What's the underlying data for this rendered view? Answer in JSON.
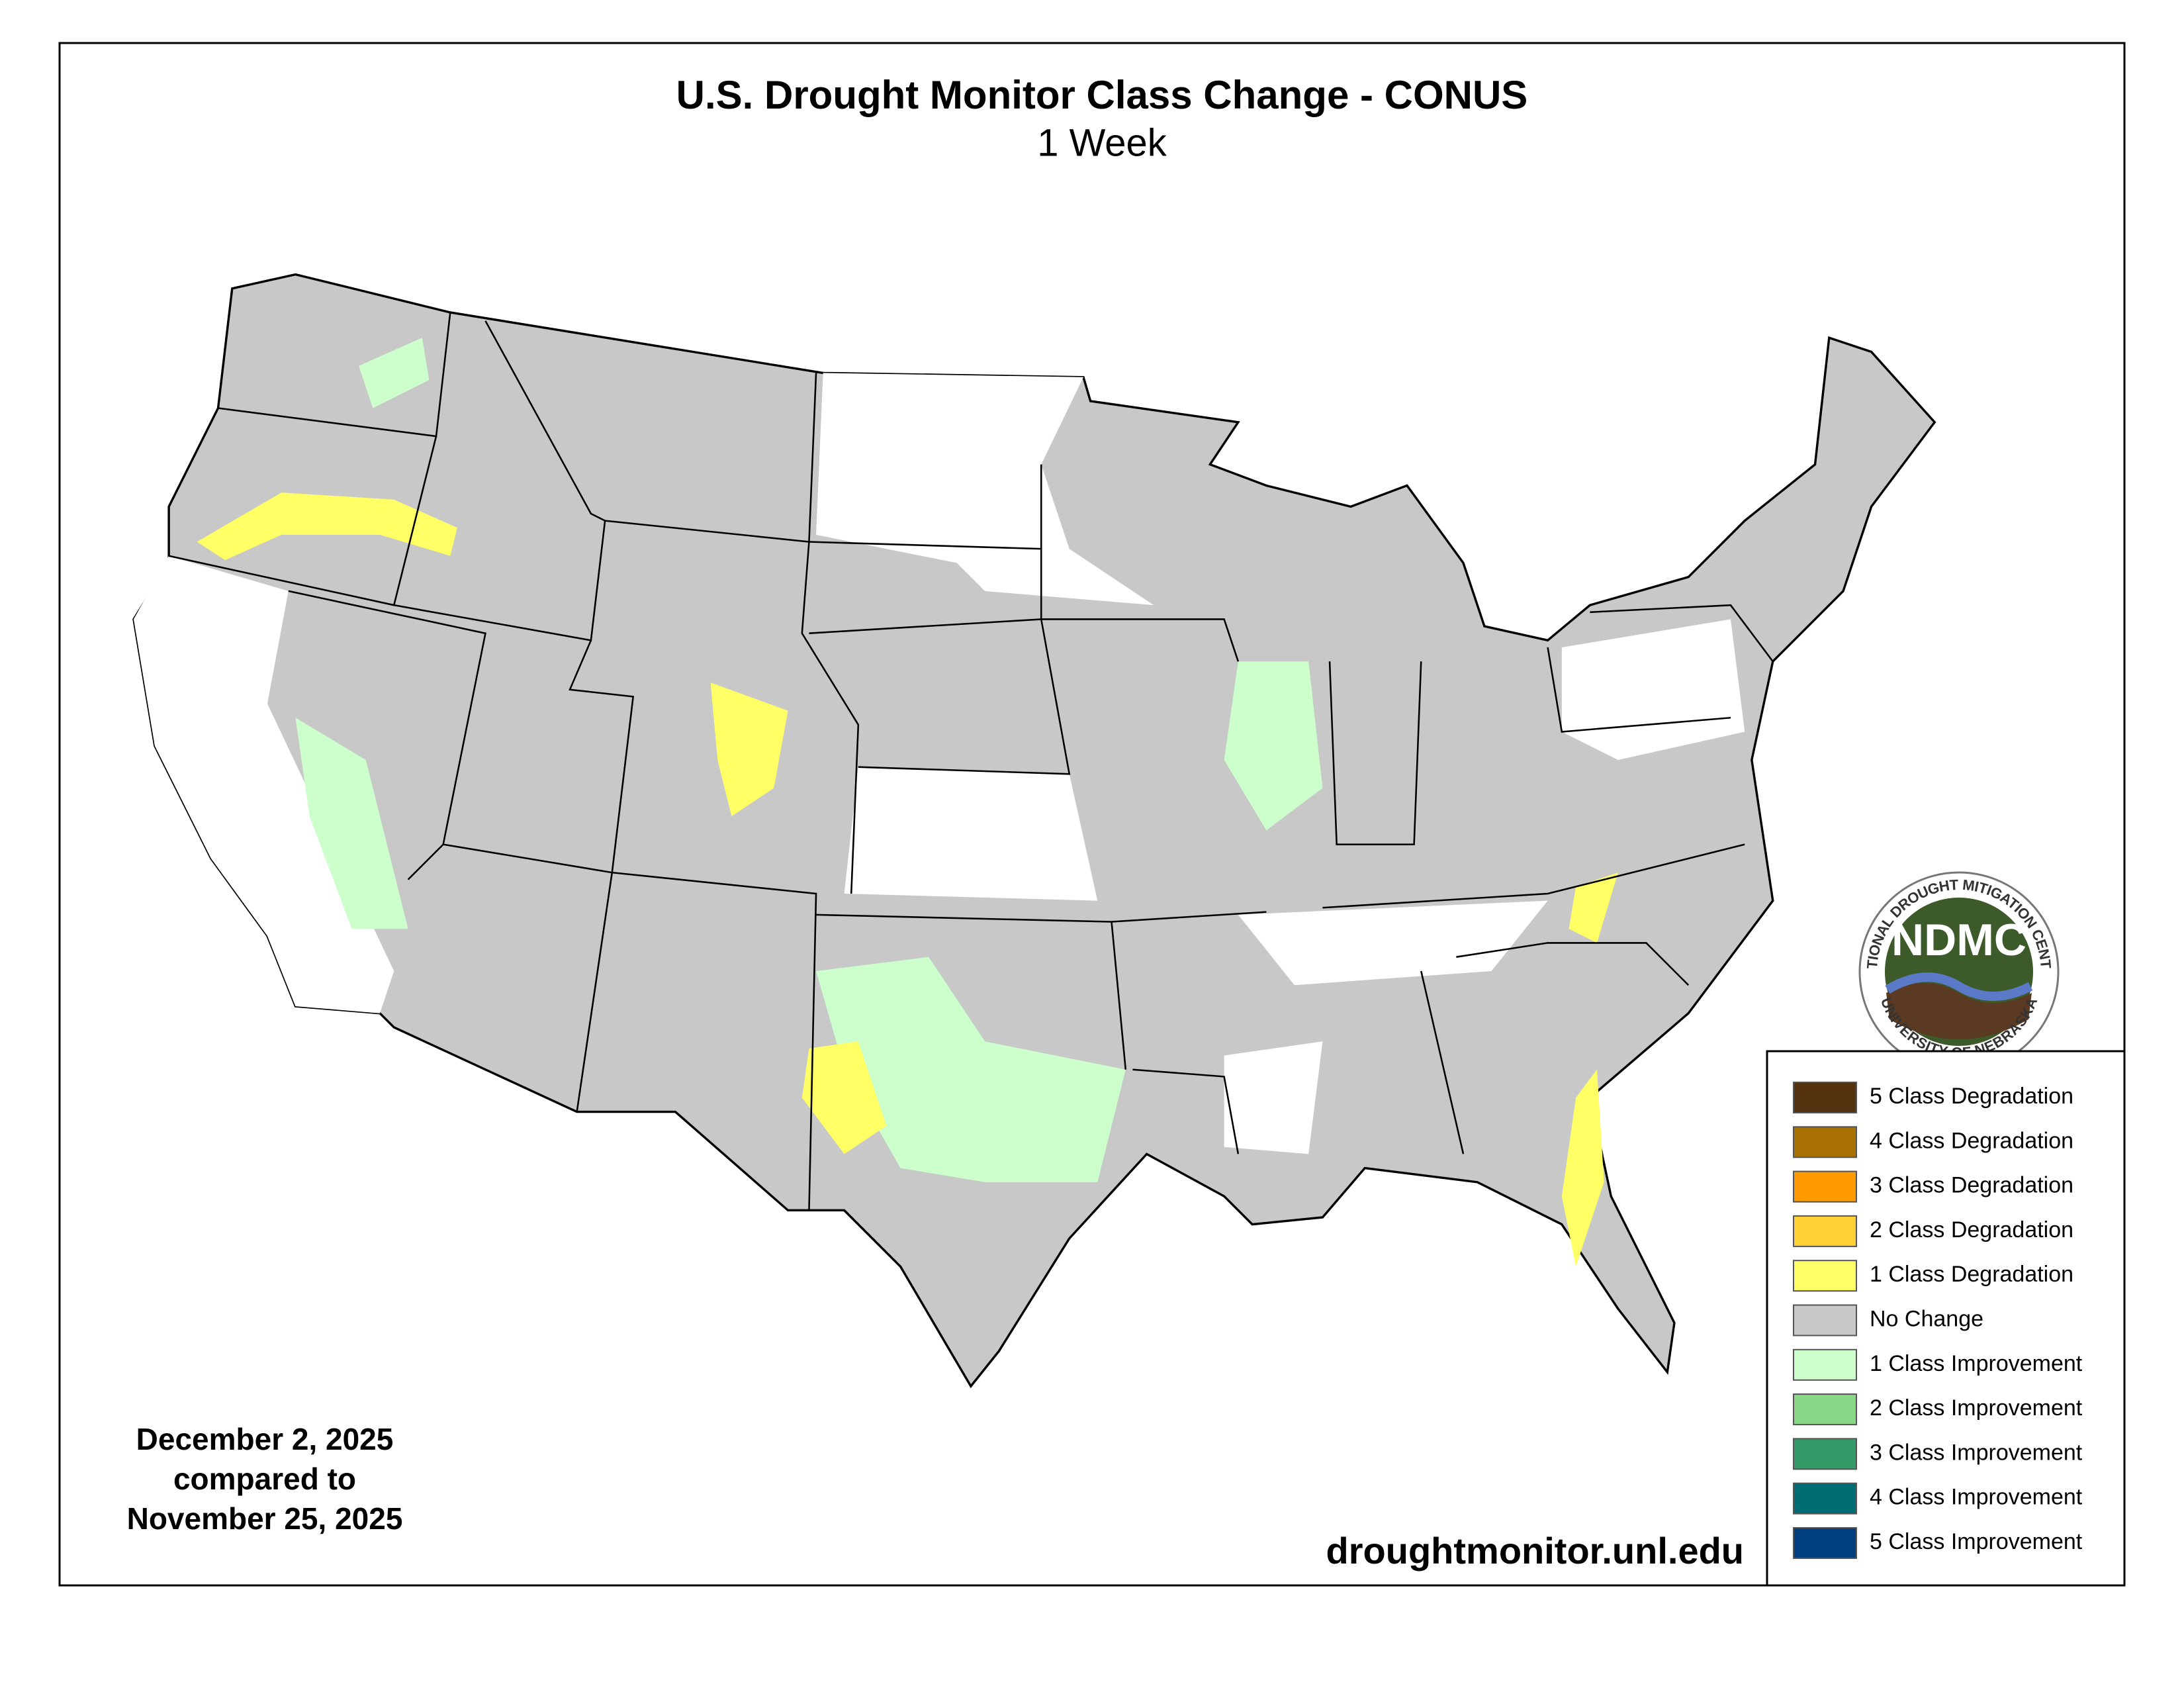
{
  "header": {
    "title": "U.S. Drought Monitor Class Change - CONUS",
    "subtitle": "1 Week"
  },
  "legend": {
    "items": [
      {
        "label": "5 Class Degradation",
        "color": "#553310"
      },
      {
        "label": "4 Class Degradation",
        "color": "#a87000"
      },
      {
        "label": "3 Class Degradation",
        "color": "#ff9900"
      },
      {
        "label": "2 Class Degradation",
        "color": "#ffd033"
      },
      {
        "label": "1 Class Degradation",
        "color": "#ffff66"
      },
      {
        "label": "No Change",
        "color": "#c8c8c8"
      },
      {
        "label": "1 Class Improvement",
        "color": "#ccffcc"
      },
      {
        "label": "2 Class Improvement",
        "color": "#88d888"
      },
      {
        "label": "3 Class Improvement",
        "color": "#339966"
      },
      {
        "label": "4 Class Improvement",
        "color": "#006d75"
      },
      {
        "label": "5 Class Improvement",
        "color": "#003f7f"
      }
    ]
  },
  "dates": {
    "current": "December 2, 2025",
    "connector": "compared to",
    "previous": "November 25, 2025"
  },
  "source": "droughtmonitor.unl.edu",
  "logo": {
    "acronym": "NDMC",
    "top_text": "NATIONAL DROUGHT MITIGATION CENTER",
    "bottom_text": "UNIVERSITY OF NEBRASKA"
  }
}
